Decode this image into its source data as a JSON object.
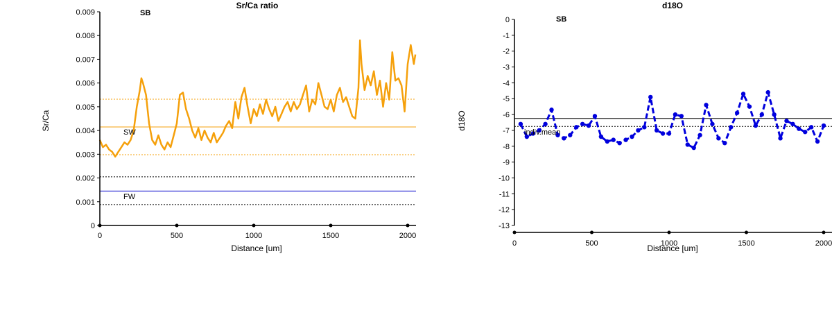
{
  "charts": [
    {
      "title": "Sr/Ca ratio",
      "site_label": "SB",
      "xlabel": "Distance [um]",
      "ylabel": "Sr/Ca",
      "xticks": [
        "0",
        "500",
        "1000",
        "1500",
        "2000"
      ],
      "yticks": [
        "0",
        "0.001",
        "0.002",
        "0.003",
        "0.004",
        "0.005",
        "0.006",
        "0.007",
        "0.008",
        "0.009"
      ],
      "ann_sw": "SW",
      "ann_fw": "FW"
    },
    {
      "title": "d18O",
      "site_label": "SB",
      "xlabel": "Distance [um]",
      "ylabel": "d18O",
      "xticks": [
        "0",
        "500",
        "1000",
        "1500",
        "2000"
      ],
      "yticks": [
        "0",
        "-1",
        "-2",
        "-3",
        "-4",
        "-5",
        "-6",
        "-7",
        "-8",
        "-9",
        "-10",
        "-11",
        "-12",
        "-13"
      ],
      "ann_mean": "indiv.mean"
    }
  ],
  "chart_data": [
    {
      "type": "line",
      "title": "Sr/Ca ratio",
      "xlabel": "Distance [um]",
      "ylabel": "Sr/Ca",
      "xlim": [
        0,
        2050
      ],
      "ylim": [
        0,
        0.009
      ],
      "grid": false,
      "series_color": "#f5a00b",
      "series": [
        {
          "x": [
            0,
            20,
            40,
            60,
            80,
            100,
            120,
            140,
            160,
            180,
            200,
            220,
            240,
            260,
            270,
            280,
            300,
            320,
            340,
            360,
            380,
            400,
            420,
            440,
            460,
            480,
            500,
            520,
            540,
            560,
            580,
            600,
            620,
            640,
            660,
            680,
            700,
            720,
            740,
            760,
            780,
            800,
            820,
            840,
            860,
            880,
            900,
            920,
            940,
            960,
            980,
            1000,
            1020,
            1040,
            1060,
            1080,
            1100,
            1120,
            1140,
            1160,
            1180,
            1200,
            1220,
            1240,
            1260,
            1280,
            1300,
            1320,
            1340,
            1360,
            1380,
            1400,
            1420,
            1440,
            1460,
            1480,
            1500,
            1520,
            1540,
            1560,
            1580,
            1600,
            1620,
            1640,
            1660,
            1680,
            1690,
            1700,
            1720,
            1740,
            1760,
            1780,
            1800,
            1820,
            1840,
            1860,
            1880,
            1900,
            1920,
            1940,
            1960,
            1980,
            2000,
            2020,
            2040,
            2050
          ],
          "y": [
            0.0036,
            0.0033,
            0.0034,
            0.0032,
            0.0031,
            0.0029,
            0.0031,
            0.0033,
            0.0035,
            0.0034,
            0.0036,
            0.004,
            0.005,
            0.0057,
            0.0062,
            0.006,
            0.0055,
            0.0043,
            0.0036,
            0.0034,
            0.0038,
            0.0034,
            0.0032,
            0.0035,
            0.0033,
            0.0038,
            0.0043,
            0.0055,
            0.0056,
            0.0049,
            0.0045,
            0.004,
            0.0037,
            0.0041,
            0.0036,
            0.004,
            0.0037,
            0.0035,
            0.0039,
            0.0035,
            0.0037,
            0.0039,
            0.0042,
            0.0044,
            0.0041,
            0.0052,
            0.0045,
            0.0054,
            0.0058,
            0.005,
            0.0043,
            0.0049,
            0.0046,
            0.0051,
            0.0047,
            0.0053,
            0.0049,
            0.0046,
            0.005,
            0.0044,
            0.0047,
            0.005,
            0.0052,
            0.0048,
            0.0052,
            0.0049,
            0.0051,
            0.0055,
            0.0059,
            0.0048,
            0.0053,
            0.0051,
            0.006,
            0.0055,
            0.005,
            0.0049,
            0.0053,
            0.0048,
            0.0055,
            0.0058,
            0.0052,
            0.0054,
            0.005,
            0.0046,
            0.0045,
            0.0058,
            0.0078,
            0.0068,
            0.0057,
            0.0063,
            0.0059,
            0.0065,
            0.0055,
            0.0061,
            0.005,
            0.006,
            0.0053,
            0.0073,
            0.0061,
            0.0062,
            0.0059,
            0.0048,
            0.0068,
            0.0076,
            0.0068,
            0.0072
          ]
        }
      ],
      "reference_lines": [
        {
          "y": 0.00415,
          "color": "#f5a00b",
          "style": "solid"
        },
        {
          "y": 0.00532,
          "color": "#f5a00b",
          "style": "dotted"
        },
        {
          "y": 0.00298,
          "color": "#f5a00b",
          "style": "dotted"
        },
        {
          "y": 0.00145,
          "color": "#0000cc",
          "style": "solid"
        },
        {
          "y": 0.00205,
          "color": "#000000",
          "style": "dotted"
        },
        {
          "y": 0.00088,
          "color": "#000000",
          "style": "dotted"
        }
      ]
    },
    {
      "type": "line",
      "title": "d18O",
      "xlabel": "Distance [um]",
      "ylabel": "d18O",
      "xlim": [
        0,
        2000
      ],
      "ylim": [
        -13,
        0
      ],
      "grid": false,
      "series_color": "#0000dd",
      "series": [
        {
          "x": [
            40,
            80,
            120,
            160,
            200,
            240,
            280,
            320,
            360,
            400,
            440,
            480,
            520,
            560,
            600,
            640,
            680,
            720,
            760,
            800,
            840,
            880,
            920,
            960,
            1000,
            1040,
            1080,
            1120,
            1160,
            1200,
            1240,
            1280,
            1320,
            1360,
            1400,
            1440,
            1480,
            1520,
            1560,
            1600,
            1640,
            1680,
            1720,
            1760,
            1800,
            1840,
            1880,
            1920,
            1960,
            2000
          ],
          "y": [
            -6.6,
            -7.4,
            -7.2,
            -7.0,
            -6.6,
            -5.7,
            -7.3,
            -7.5,
            -7.3,
            -6.8,
            -6.6,
            -6.7,
            -6.1,
            -7.4,
            -7.7,
            -7.6,
            -7.8,
            -7.6,
            -7.4,
            -7.0,
            -6.8,
            -4.9,
            -7.0,
            -7.2,
            -7.2,
            -6.0,
            -6.1,
            -7.9,
            -8.1,
            -7.3,
            -5.4,
            -6.6,
            -7.5,
            -7.8,
            -6.8,
            -5.9,
            -4.7,
            -5.5,
            -6.7,
            -6.0,
            -4.6,
            -6.0,
            -7.5,
            -6.4,
            -6.6,
            -6.9,
            -7.1,
            -6.8,
            -7.7,
            -6.7
          ]
        }
      ],
      "reference_lines": [
        {
          "y": -6.25,
          "color": "#000000",
          "style": "solid"
        },
        {
          "y": -6.75,
          "color": "#000000",
          "style": "dotted"
        }
      ]
    }
  ]
}
